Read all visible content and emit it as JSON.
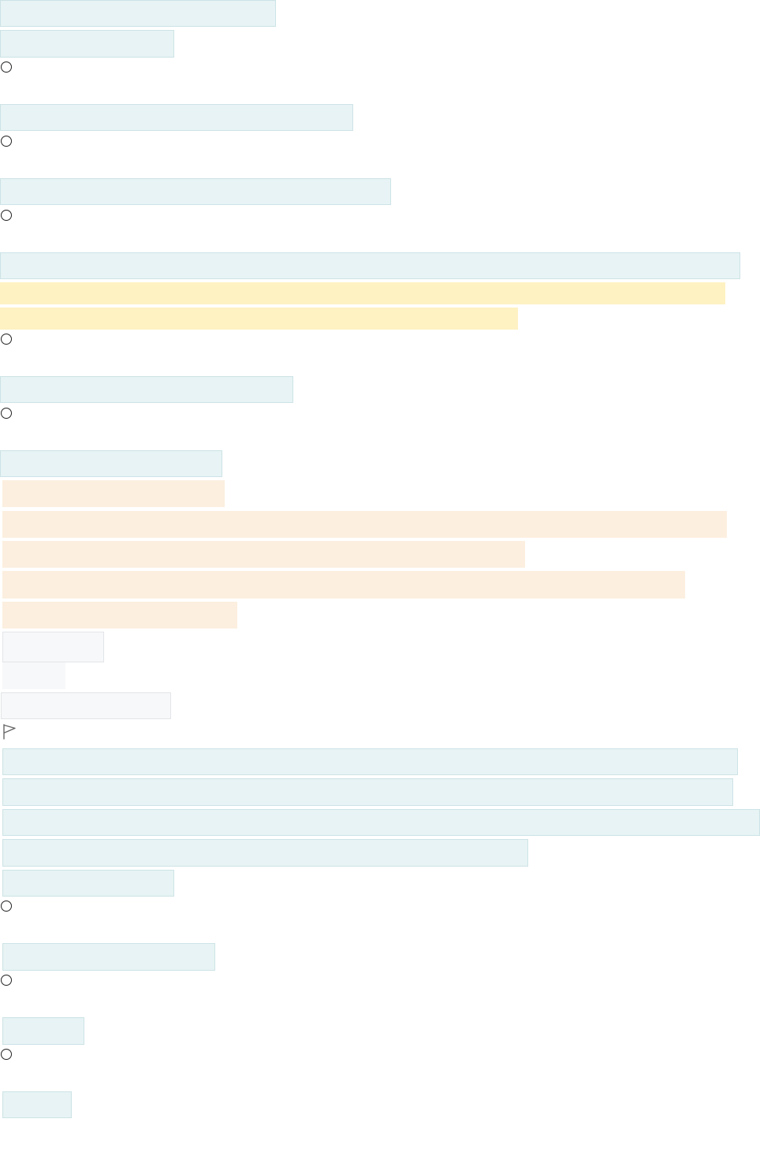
{
  "items": [],
  "colors": {
    "answer_highlight": "#e7f3f4",
    "yellow_highlight": "#fff2c2",
    "peach_highlight": "#fcefdf",
    "grey_highlight": "#f7f8f9"
  },
  "icons": {
    "radio": "radio-button-icon",
    "flag": "flag-icon"
  }
}
